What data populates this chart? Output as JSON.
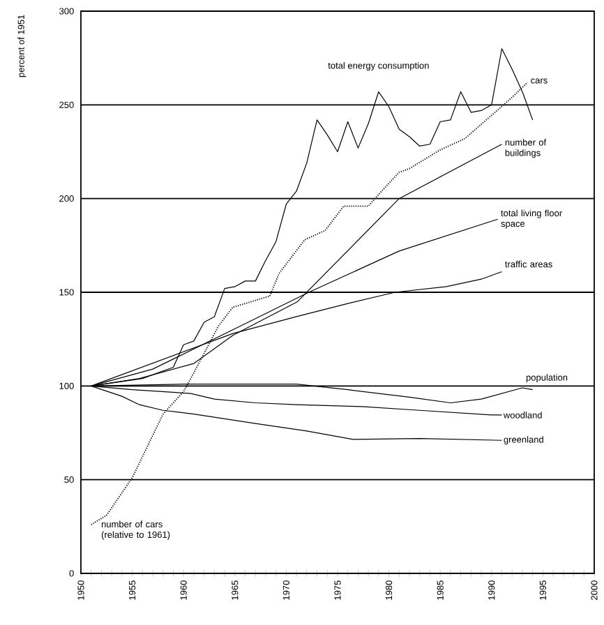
{
  "chart_data": {
    "type": "line",
    "ylabel": "percent of 1951",
    "xlim": [
      1950,
      2000
    ],
    "ylim": [
      0,
      300
    ],
    "xticks": [
      1950,
      {
        "value": 1951,
        "label": null
      },
      {
        "value": 1952,
        "label": null
      },
      {
        "value": 1953,
        "label": null
      },
      {
        "value": 1954,
        "label": null
      },
      1955,
      {
        "value": 1956,
        "label": null
      },
      {
        "value": 1957,
        "label": null
      },
      {
        "value": 1958,
        "label": null
      },
      {
        "value": 1959,
        "label": null
      },
      1960,
      {
        "value": 1961,
        "label": null
      },
      {
        "value": 1962,
        "label": null
      },
      {
        "value": 1963,
        "label": null
      },
      {
        "value": 1964,
        "label": null
      },
      1965,
      {
        "value": 1966,
        "label": null
      },
      {
        "value": 1967,
        "label": null
      },
      {
        "value": 1968,
        "label": null
      },
      {
        "value": 1969,
        "label": null
      },
      1970,
      {
        "value": 1971,
        "label": null
      },
      {
        "value": 1972,
        "label": null
      },
      {
        "value": 1973,
        "label": null
      },
      {
        "value": 1974,
        "label": null
      },
      1975,
      {
        "value": 1976,
        "label": null
      },
      {
        "value": 1977,
        "label": null
      },
      {
        "value": 1978,
        "label": null
      },
      {
        "value": 1979,
        "label": null
      },
      1980,
      {
        "value": 1981,
        "label": null
      },
      {
        "value": 1982,
        "label": null
      },
      {
        "value": 1983,
        "label": null
      },
      {
        "value": 1984,
        "label": null
      },
      1985,
      {
        "value": 1986,
        "label": null
      },
      {
        "value": 1987,
        "label": null
      },
      {
        "value": 1988,
        "label": null
      },
      {
        "value": 1989,
        "label": null
      },
      1990,
      {
        "value": 1991,
        "label": null
      },
      {
        "value": 1992,
        "label": null
      },
      {
        "value": 1993,
        "label": null
      },
      {
        "value": 1994,
        "label": null
      },
      1995,
      {
        "value": 1996,
        "label": null
      },
      {
        "value": 1997,
        "label": null
      },
      {
        "value": 1998,
        "label": null
      },
      {
        "value": 1999,
        "label": null
      },
      2000
    ],
    "yticks": [
      0,
      50,
      100,
      150,
      200,
      250,
      300
    ],
    "grid": "y",
    "legend": false,
    "marker": "none",
    "series": [
      {
        "name": "total energy consumption",
        "color": "#000000",
        "x": [
          1951,
          1956,
          1959,
          1960,
          1961,
          1962,
          1963,
          1964,
          1965,
          1966,
          1967,
          1968,
          1969,
          1970,
          1971,
          1972,
          1973,
          1974,
          1975,
          1976,
          1977,
          1978,
          1979,
          1980,
          1981,
          1982,
          1983,
          1984,
          1985,
          1986,
          1987,
          1988,
          1989,
          1990,
          1991,
          1992,
          1993,
          1994
        ],
        "values": [
          100,
          104,
          110,
          122,
          124,
          134,
          137,
          152,
          153,
          156,
          156,
          167,
          177,
          197,
          204,
          219,
          242,
          234,
          225,
          241,
          227,
          240,
          257,
          249,
          237,
          233,
          228,
          229,
          241,
          242,
          257,
          246,
          247,
          250,
          280,
          269,
          257,
          242
        ]
      },
      {
        "name": "cars",
        "color": "#000000",
        "line_style": "dotted",
        "x": [
          1951,
          1952.5,
          1955,
          1958,
          1960,
          1961,
          1963.4,
          1964.8,
          1968.4,
          1969.3,
          1971.8,
          1973,
          1973.8,
          1975.6,
          1978,
          1979.3,
          1981,
          1982,
          1985,
          1987.4,
          1989.7,
          1992,
          1993.5
        ],
        "values": [
          26,
          31,
          51,
          85,
          97,
          107,
          132,
          142,
          148,
          160,
          178,
          181,
          183,
          196,
          196,
          204,
          214,
          216,
          226,
          232,
          243,
          254,
          262
        ]
      },
      {
        "name": "number of buildings",
        "color": "#000000",
        "x": [
          1951,
          1955.7,
          1961,
          1964.8,
          1971.1,
          1981,
          1991
        ],
        "values": [
          100,
          104,
          112,
          127,
          145,
          200,
          229
        ]
      },
      {
        "name": "total living floor space",
        "color": "#000000",
        "x": [
          1951,
          1957,
          1964.8,
          1972.2,
          1981,
          1990.6
        ],
        "values": [
          100,
          109,
          130,
          150,
          172,
          189
        ]
      },
      {
        "name": "traffic areas",
        "color": "#000000",
        "x": [
          1951,
          1964.8,
          1971,
          1976,
          1980.6,
          1985.6,
          1989,
          1991
        ],
        "values": [
          100,
          128,
          137,
          144,
          150,
          153,
          157,
          161
        ]
      },
      {
        "name": "population",
        "color": "#000000",
        "x": [
          1951,
          1960,
          1971,
          1976,
          1982,
          1986,
          1989,
          1993,
          1994
        ],
        "values": [
          100,
          101,
          101,
          98,
          94,
          91,
          93,
          99,
          98
        ]
      },
      {
        "name": "woodland",
        "color": "#000000",
        "x": [
          1951,
          1955,
          1960.7,
          1963,
          1967,
          1971,
          1977.4,
          1983,
          1990,
          1991
        ],
        "values": [
          100,
          98,
          96,
          93,
          91,
          90,
          89,
          87,
          84.5,
          84.5
        ]
      },
      {
        "name": "greenland",
        "color": "#000000",
        "x": [
          1951,
          1954,
          1955.7,
          1958,
          1961,
          1967,
          1972,
          1976.5,
          1983,
          1991
        ],
        "values": [
          100,
          94.5,
          90,
          87,
          85,
          80,
          76,
          71.5,
          72,
          71
        ]
      }
    ],
    "annotations": [
      {
        "text": "number of cars (relative to 1961)",
        "x": 1951,
        "y": 26
      }
    ]
  }
}
